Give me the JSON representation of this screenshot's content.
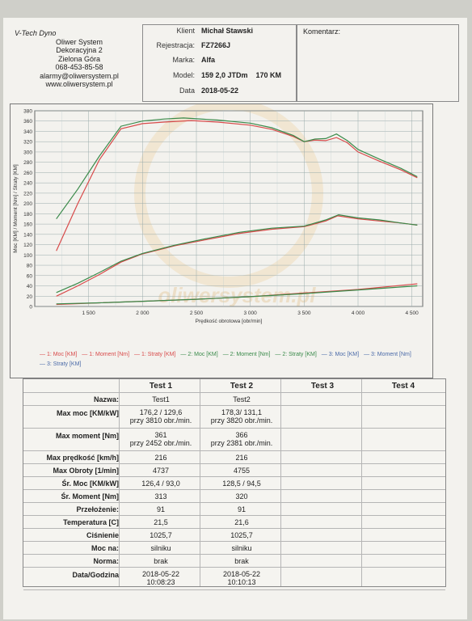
{
  "header": {
    "company": "V-Tech Dyno",
    "lines": [
      "Oliwer System",
      "Dekoracyjna 2",
      "Zielona Góra",
      "068-453-85-58",
      "alarmy@oliwersystem.pl",
      "www.oliwersystem.pl"
    ]
  },
  "client": [
    {
      "label": "Klient",
      "value": "Michał Stawski"
    },
    {
      "label": "Rejestracja:",
      "value": "FZ7266J"
    },
    {
      "label": "Marka:",
      "value": "Alfa"
    },
    {
      "label": "Model:",
      "value": "159 2,0 JTDm    170 KM"
    },
    {
      "label": "Data",
      "value": "2018-05-22"
    }
  ],
  "comment_label": "Komentarz:",
  "watermark": "oliwersystem.pl",
  "chart_data": {
    "type": "line",
    "xlabel": "Prędkość obrotowa [obr/min]",
    "ylabel": "Moc [KM] / Moment [Nm] / Straty [KM]",
    "xlim": [
      1000,
      4600
    ],
    "ylim": [
      0,
      380
    ],
    "xticks": [
      1500,
      2000,
      2500,
      3000,
      3500,
      4000,
      4500
    ],
    "xtick_labels": [
      "1 500",
      "2 000",
      "2 500",
      "3 000",
      "3 500",
      "4 000",
      "4 500"
    ],
    "yticks": [
      0,
      20,
      40,
      60,
      80,
      100,
      120,
      140,
      160,
      180,
      200,
      220,
      240,
      260,
      280,
      300,
      320,
      340,
      360,
      380
    ],
    "grid": true,
    "colors": {
      "test1": "#d84a4a",
      "test2": "#3a8a4a"
    },
    "series": [
      {
        "name": "1: Moment [Nm]",
        "test": "test1",
        "x": [
          1200,
          1400,
          1600,
          1800,
          2000,
          2200,
          2452,
          2700,
          3000,
          3200,
          3400,
          3500,
          3600,
          3700,
          3800,
          3900,
          4000,
          4200,
          4400,
          4550
        ],
        "values": [
          108,
          200,
          285,
          345,
          355,
          358,
          361,
          358,
          352,
          344,
          330,
          320,
          323,
          322,
          328,
          318,
          300,
          282,
          265,
          250
        ]
      },
      {
        "name": "2: Moment [Nm]",
        "test": "test2",
        "x": [
          1200,
          1400,
          1600,
          1800,
          2000,
          2200,
          2381,
          2700,
          3000,
          3200,
          3400,
          3500,
          3600,
          3700,
          3800,
          3900,
          4000,
          4200,
          4400,
          4550
        ],
        "values": [
          170,
          228,
          292,
          350,
          360,
          364,
          366,
          362,
          356,
          347,
          332,
          320,
          325,
          326,
          335,
          322,
          305,
          286,
          268,
          252
        ]
      },
      {
        "name": "1: Moc [KM]",
        "test": "test1",
        "x": [
          1200,
          1400,
          1600,
          1800,
          2000,
          2300,
          2600,
          2900,
          3200,
          3500,
          3700,
          3810,
          4000,
          4200,
          4400,
          4550
        ],
        "values": [
          20,
          40,
          62,
          86,
          102,
          118,
          130,
          142,
          150,
          155,
          166,
          176,
          170,
          166,
          162,
          158
        ]
      },
      {
        "name": "2: Moc [KM]",
        "test": "test2",
        "x": [
          1200,
          1400,
          1600,
          1800,
          2000,
          2300,
          2600,
          2900,
          3200,
          3500,
          3700,
          3820,
          4000,
          4200,
          4400,
          4550
        ],
        "values": [
          27,
          45,
          66,
          88,
          103,
          119,
          132,
          144,
          152,
          156,
          168,
          178,
          172,
          168,
          162,
          158
        ]
      },
      {
        "name": "1: Straty [KM]",
        "test": "test1",
        "x": [
          1200,
          1600,
          2000,
          2500,
          3000,
          3500,
          4000,
          4550
        ],
        "values": [
          4,
          7,
          10,
          14,
          19,
          26,
          33,
          44
        ]
      },
      {
        "name": "2: Straty [KM]",
        "test": "test2",
        "x": [
          1200,
          1600,
          2000,
          2500,
          3000,
          3500,
          4000,
          4550
        ],
        "values": [
          5,
          7,
          10,
          14,
          19,
          25,
          32,
          40
        ]
      }
    ],
    "legend": [
      "1: Moc [KM]",
      "1: Moment [Nm]",
      "1: Straty [KM]",
      "2: Moc [KM]",
      "2: Moment [Nm]",
      "2: Straty [KM]",
      "3: Moc [KM]",
      "3: Moment [Nm]",
      "3: Straty [KM]"
    ]
  },
  "table": {
    "headers": [
      "Test 1",
      "Test 2",
      "Test 3",
      "Test 4"
    ],
    "rows": [
      {
        "label": "Nazwa:",
        "t1": "Test1",
        "t2": "Test2"
      },
      {
        "label": "Max moc [KM/kW]",
        "t1": "176,2 / 129,6\nprzy 3810 obr./min.",
        "t2": "178,3/ 131,1\nprzy 3820 obr./min."
      },
      {
        "label": "Max moment [Nm]",
        "t1": "361\nprzy 2452 obr./min.",
        "t2": "366\nprzy 2381 obr./min."
      },
      {
        "label": "Max prędkość [km/h]",
        "t1": "216",
        "t2": "216"
      },
      {
        "label": "Max Obroty [1/min]",
        "t1": "4737",
        "t2": "4755"
      },
      {
        "label": "Śr. Moc [KM/kW]",
        "t1": "126,4 / 93,0",
        "t2": "128,5 / 94,5"
      },
      {
        "label": "Śr. Moment [Nm]",
        "t1": "313",
        "t2": "320"
      },
      {
        "label": "Przełożenie:",
        "t1": "91",
        "t2": "91"
      },
      {
        "label": "Temperatura [C]",
        "t1": "21,5",
        "t2": "21,6"
      },
      {
        "label": "Ciśnienie",
        "t1": "1025,7",
        "t2": "1025,7"
      },
      {
        "label": "Moc na:",
        "t1": "silniku",
        "t2": "silniku"
      },
      {
        "label": "Norma:",
        "t1": "brak",
        "t2": "brak"
      },
      {
        "label": "Data/Godzina",
        "t1": "2018-05-22\n10:08:23",
        "t2": "2018-05-22\n10:10:13"
      }
    ]
  }
}
